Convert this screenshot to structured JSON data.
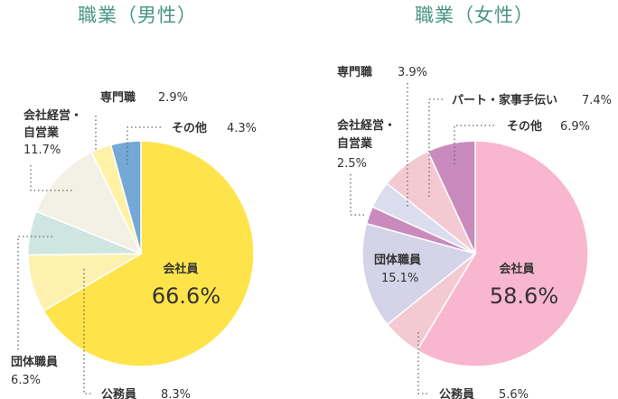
{
  "chart_data": [
    {
      "type": "pie",
      "title": "職業（男性）",
      "slices": [
        {
          "label": "会社員",
          "value": 66.6,
          "value_text": "66.6%",
          "color": "#ffe34a"
        },
        {
          "label": "公務員",
          "value": 8.3,
          "value_text": "8.3%",
          "color": "#fef1b0"
        },
        {
          "label": "団体職員",
          "value": 6.3,
          "value_text": "6.3%",
          "color": "#cfe6e0"
        },
        {
          "label": "会社経営・自営業",
          "value": 11.7,
          "value_text": "11.7%",
          "color": "#f3f0e6"
        },
        {
          "label": "専門職",
          "value": 2.9,
          "value_text": "2.9%",
          "color": "#fff1a6"
        },
        {
          "label": "その他",
          "value": 4.3,
          "value_text": "4.3%",
          "color": "#74a8d6"
        }
      ]
    },
    {
      "type": "pie",
      "title": "職業（女性）",
      "slices": [
        {
          "label": "会社員",
          "value": 58.6,
          "value_text": "58.6%",
          "color": "#f8b6cf"
        },
        {
          "label": "公務員",
          "value": 5.6,
          "value_text": "5.6%",
          "color": "#f4cad2"
        },
        {
          "label": "団体職員",
          "value": 15.1,
          "value_text": "15.1%",
          "color": "#d4d3e8"
        },
        {
          "label": "会社経営・自営業",
          "value": 2.5,
          "value_text": "2.5%",
          "color": "#c98bbd"
        },
        {
          "label": "専門職",
          "value": 3.9,
          "value_text": "3.9%",
          "color": "#dcdcef"
        },
        {
          "label": "パート・家事手伝い",
          "value": 7.4,
          "value_text": "7.4%",
          "color": "#f4cad2"
        },
        {
          "label": "その他",
          "value": 6.9,
          "value_text": "6.9%",
          "color": "#c98bbd"
        }
      ]
    }
  ]
}
